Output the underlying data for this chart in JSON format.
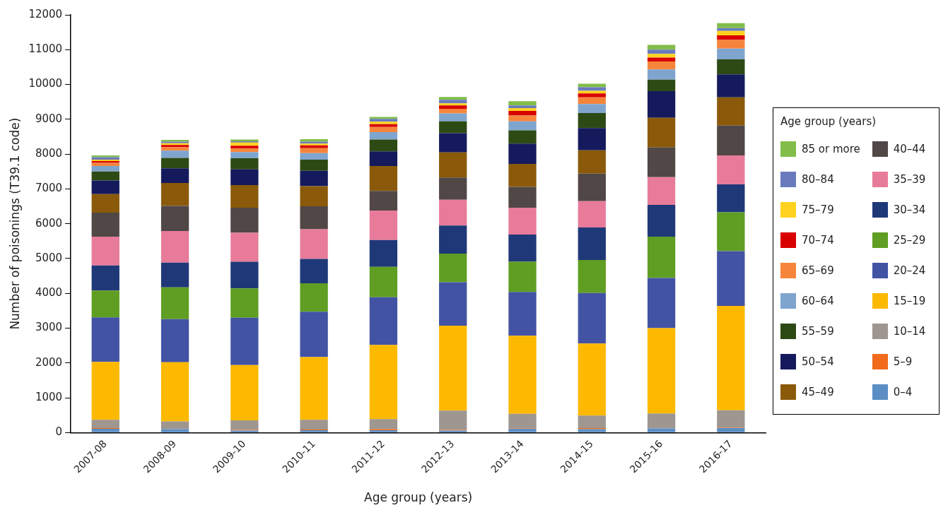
{
  "chart_data": {
    "type": "bar",
    "stacked": true,
    "xlabel": "Age group (years)",
    "ylabel": "Number of poisonings (T39.1 code)",
    "legend_title": "Age group (years)",
    "legend": "right",
    "grid": false,
    "categories": [
      "2007-08",
      "2008-09",
      "2009-10",
      "2010-11",
      "2011-12",
      "2012-13",
      "2013-14",
      "2014-15",
      "2015-16",
      "2016-17"
    ],
    "ylim": [
      0,
      12000
    ],
    "yticks": [
      0,
      1000,
      2000,
      3000,
      4000,
      5000,
      6000,
      7000,
      8000,
      9000,
      10000,
      11000,
      12000
    ],
    "series": [
      {
        "name": "0–4",
        "color": "#5b8ec4",
        "values": [
          110,
          100,
          60,
          70,
          70,
          60,
          110,
          100,
          120,
          130
        ]
      },
      {
        "name": "5–9",
        "color": "#f26a1b",
        "values": [
          20,
          null,
          20,
          20,
          30,
          20,
          10,
          30,
          null,
          10
        ]
      },
      {
        "name": "10–14",
        "color": "#9e968f",
        "values": [
          240,
          220,
          270,
          280,
          290,
          550,
          420,
          360,
          430,
          500
        ]
      },
      {
        "name": "15–19",
        "color": "#fdb900",
        "values": [
          1660,
          1700,
          1590,
          1800,
          2130,
          2440,
          2240,
          2070,
          2450,
          3000
        ]
      },
      {
        "name": "20–24",
        "color": "#4253a3",
        "values": [
          1280,
          1240,
          1360,
          1300,
          1370,
          1250,
          1260,
          1450,
          1440,
          1570
        ]
      },
      {
        "name": "25–29",
        "color": "#5f9e22",
        "values": [
          770,
          910,
          840,
          820,
          870,
          820,
          870,
          950,
          1190,
          1120
        ]
      },
      {
        "name": "30–34",
        "color": "#1f3878",
        "values": [
          720,
          710,
          770,
          700,
          770,
          810,
          780,
          930,
          910,
          800
        ]
      },
      {
        "name": "35–39",
        "color": "#e87b9a",
        "values": [
          830,
          910,
          830,
          850,
          850,
          740,
          770,
          760,
          800,
          830
        ]
      },
      {
        "name": "40–44",
        "color": "#504746",
        "values": [
          690,
          720,
          720,
          660,
          560,
          640,
          600,
          790,
          850,
          860
        ]
      },
      {
        "name": "45–49",
        "color": "#8a5a0a",
        "values": [
          530,
          660,
          650,
          580,
          720,
          720,
          660,
          670,
          850,
          810
        ]
      },
      {
        "name": "50–54",
        "color": "#141a5c",
        "values": [
          390,
          420,
          450,
          440,
          420,
          550,
          580,
          640,
          770,
          660
        ]
      },
      {
        "name": "55–59",
        "color": "#2e4a14",
        "values": [
          260,
          300,
          320,
          320,
          340,
          340,
          380,
          430,
          330,
          430
        ]
      },
      {
        "name": "60–64",
        "color": "#7fa5cf",
        "values": [
          160,
          210,
          180,
          190,
          210,
          230,
          260,
          260,
          290,
          310
        ]
      },
      {
        "name": "65–69",
        "color": "#f6853b",
        "values": [
          90,
          100,
          100,
          140,
          150,
          130,
          170,
          190,
          230,
          250
        ]
      },
      {
        "name": "70–74",
        "color": "#d80000",
        "values": [
          50,
          60,
          80,
          80,
          80,
          100,
          130,
          110,
          110,
          130
        ]
      },
      {
        "name": "75–79",
        "color": "#ffd21f",
        "values": [
          40,
          50,
          90,
          50,
          70,
          60,
          80,
          80,
          110,
          130
        ]
      },
      {
        "name": "80–84",
        "color": "#6a7bbd",
        "values": [
          70,
          50,
          40,
          60,
          80,
          100,
          80,
          100,
          120,
          80
        ]
      },
      {
        "name": "85 or more",
        "color": "#82bd4a",
        "values": [
          50,
          50,
          50,
          70,
          60,
          80,
          120,
          100,
          140,
          140
        ]
      }
    ]
  }
}
